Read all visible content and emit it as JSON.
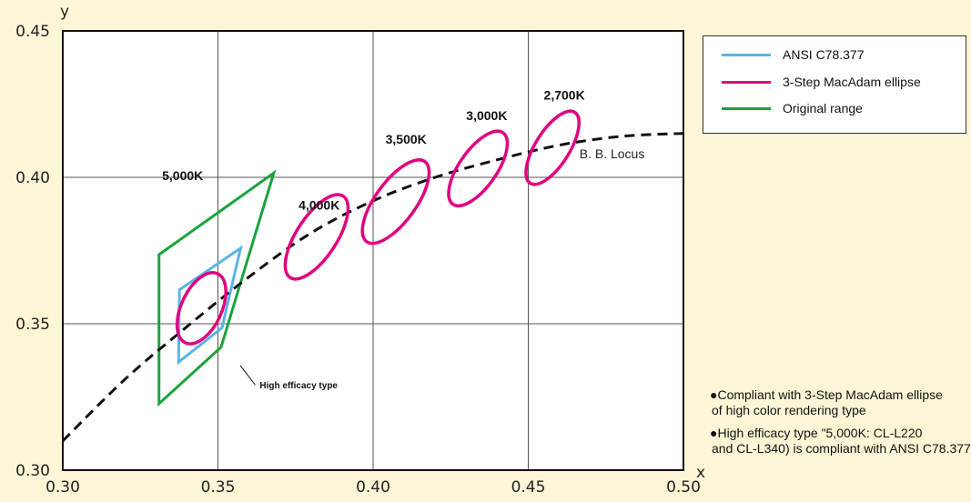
{
  "chart_data": {
    "type": "scatter",
    "title": "",
    "xlabel": "x",
    "ylabel": "y",
    "xlim": [
      0.3,
      0.5
    ],
    "ylim": [
      0.3,
      0.45
    ],
    "x_ticks": [
      "0.30",
      "0.35",
      "0.40",
      "0.45",
      "0.50"
    ],
    "y_ticks": [
      "0.30",
      "0.35",
      "0.40",
      "0.45"
    ],
    "grid": true,
    "legend": {
      "position": "top-right",
      "entries": [
        {
          "label": "ANSI C78.377",
          "color": "#5ab4e5"
        },
        {
          "label": "3-Step MacAdam ellipse",
          "color": "#e0007f"
        },
        {
          "label": "Original range",
          "color": "#1aa33c"
        }
      ]
    },
    "locus": {
      "label": "B. B. Locus",
      "color": "#111111",
      "points": [
        [
          0.3,
          0.31
        ],
        [
          0.32,
          0.331
        ],
        [
          0.34,
          0.349
        ],
        [
          0.36,
          0.366
        ],
        [
          0.38,
          0.381
        ],
        [
          0.4,
          0.392
        ],
        [
          0.42,
          0.4
        ],
        [
          0.44,
          0.406
        ],
        [
          0.46,
          0.411
        ],
        [
          0.48,
          0.414
        ],
        [
          0.5,
          0.415
        ]
      ]
    },
    "ellipses": [
      {
        "label": "5,000K",
        "cx": 0.3447,
        "cy": 0.3553,
        "rx": 0.0065,
        "ry": 0.013,
        "angle": 25,
        "label_x": 0.332,
        "label_y": 0.399
      },
      {
        "label": "4,000K",
        "cx": 0.3818,
        "cy": 0.3797,
        "rx": 0.0065,
        "ry": 0.0166,
        "angle": 33,
        "label_x": 0.376,
        "label_y": 0.389
      },
      {
        "label": "3,500K",
        "cx": 0.4073,
        "cy": 0.3917,
        "rx": 0.0065,
        "ry": 0.0169,
        "angle": 36,
        "label_x": 0.404,
        "label_y": 0.4115
      },
      {
        "label": "3,000K",
        "cx": 0.4338,
        "cy": 0.403,
        "rx": 0.006,
        "ry": 0.0149,
        "angle": 35,
        "label_x": 0.43,
        "label_y": 0.4195
      },
      {
        "label": "2,700K",
        "cx": 0.4578,
        "cy": 0.4101,
        "rx": 0.0055,
        "ry": 0.0143,
        "angle": 32,
        "label_x": 0.455,
        "label_y": 0.4265
      }
    ],
    "quads": [
      {
        "series": "ANSI C78.377",
        "color": "#5ab4e5",
        "points": [
          [
            0.3376,
            0.3616
          ],
          [
            0.3573,
            0.3758
          ],
          [
            0.3513,
            0.3486
          ],
          [
            0.3373,
            0.3369
          ]
        ]
      },
      {
        "series": "Original range",
        "color": "#1aa33c",
        "points": [
          [
            0.331,
            0.3736
          ],
          [
            0.368,
            0.4015
          ],
          [
            0.351,
            0.342
          ],
          [
            0.331,
            0.3227
          ]
        ]
      }
    ],
    "annotation": {
      "text": "High efficacy type",
      "from": [
        0.356,
        0.337
      ],
      "to": [
        0.362,
        0.3285
      ]
    }
  },
  "notes": [
    {
      "lines": [
        "●Compliant with 3-Step MacAdam ellipse",
        "of high color rendering type"
      ]
    },
    {
      "lines": [
        "●High efficacy type \"5,000K: CL-L220",
        "and CL-L340) is compliant with ANSI C78.377"
      ]
    }
  ]
}
